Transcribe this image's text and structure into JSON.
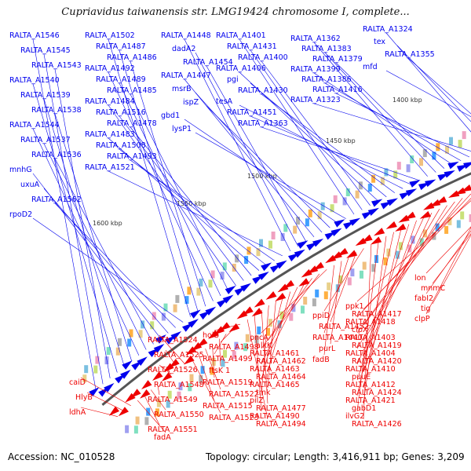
{
  "title": "Cupriavidus taiwanensis str. LMG19424 chromosome I, complete...",
  "footer": {
    "accession": "Accession: NC_010528",
    "summary": "Topology: circular; Length: 3,416,911 bp; Genes: 3,209"
  },
  "colors": {
    "upper_strand": "#0000ee",
    "lower_strand": "#ee0000",
    "backbone": "#555555",
    "tick": "#228822"
  },
  "kbp_ticks": [
    "1400 kbp",
    "1450 kbp",
    "1500 kbp",
    "1550 kbp",
    "1600 kbp"
  ],
  "upper_labels": [
    "RALTA_A1546",
    "RALTA_A1545",
    "RALTA_A1543",
    "RALTA_A1540",
    "RALTA_A1539",
    "RALTA_A1538",
    "RALTA_A1544",
    "RALTA_A1537",
    "RALTA_A1536",
    "mnhG",
    "uxuA",
    "RALTA_A1562",
    "rpoD2",
    "RALTA_A1502",
    "RALTA_A1487",
    "RALTA_A1486",
    "RALTA_A1492",
    "RALTA_A1489",
    "RALTA_A1485",
    "RALTA_A1484",
    "RALTA_A1516",
    "RALTA_A1478",
    "RALTA_A1483",
    "RALTA_A1508",
    "RALTA_A1493",
    "RALTA_A1521",
    "RALTA_A1448",
    "dadA2",
    "RALTA_A1454",
    "RALTA_A1447",
    "msrB",
    "ispZ",
    "gbd1",
    "lysP1",
    "RALTA_A1401",
    "RALTA_A1431",
    "RALTA_A1400",
    "RALTA_A1406",
    "pgi",
    "RALTA_A1430",
    "tesA",
    "RALTA_A1451",
    "RALTA_A1363",
    "RALTA_A1362",
    "RALTA_A1383",
    "RALTA_A1379",
    "RALTA_A1399",
    "RALTA_A1386",
    "RALTA_A1416",
    "RALTA_A1323",
    "RALTA_A1324",
    "tex",
    "RALTA_A1355",
    "mfd"
  ],
  "lower_labels": [
    "lon",
    "mnmC",
    "fabI2",
    "tig",
    "clpP",
    "ppk1",
    "RALTA_A1417",
    "RALTA_A1418",
    "clpX",
    "RALTA_A1403",
    "RALTA_A1419",
    "RALTA_A1404",
    "RALTA_A1420",
    "RALTA_A1410",
    "puuE",
    "RALTA_A1412",
    "RALTA_A1424",
    "RALTA_A1421",
    "gabD1",
    "ilvG2",
    "RALTA_A1426",
    "ppiD",
    "RALTA_A1452",
    "RALTA_A1440",
    "purL",
    "fadB",
    "pncA",
    "alkK",
    "RALTA_A1461",
    "RALTA_A1462",
    "RALTA_A1463",
    "RALTA_A1464",
    "RALTA_A1465",
    "tmk",
    "pilZ",
    "RALTA_A1477",
    "RALTA_A1490",
    "RALTA_A1494",
    "holB",
    "RALTA_A1498",
    "RALTA_A1499",
    "ftsK 1",
    "RALTA_A1519",
    "RALTA_A1522",
    "RALTA_A1515",
    "RALTA_A1523",
    "RALTA_A1524",
    "RALTA_A1525",
    "RALTA_A1526",
    "RALTA_A1548",
    "RALTA_A1549",
    "RALTA_A1550",
    "RALTA_A1551",
    "fadA",
    "caiD",
    "HlyB",
    "ldhA"
  ]
}
